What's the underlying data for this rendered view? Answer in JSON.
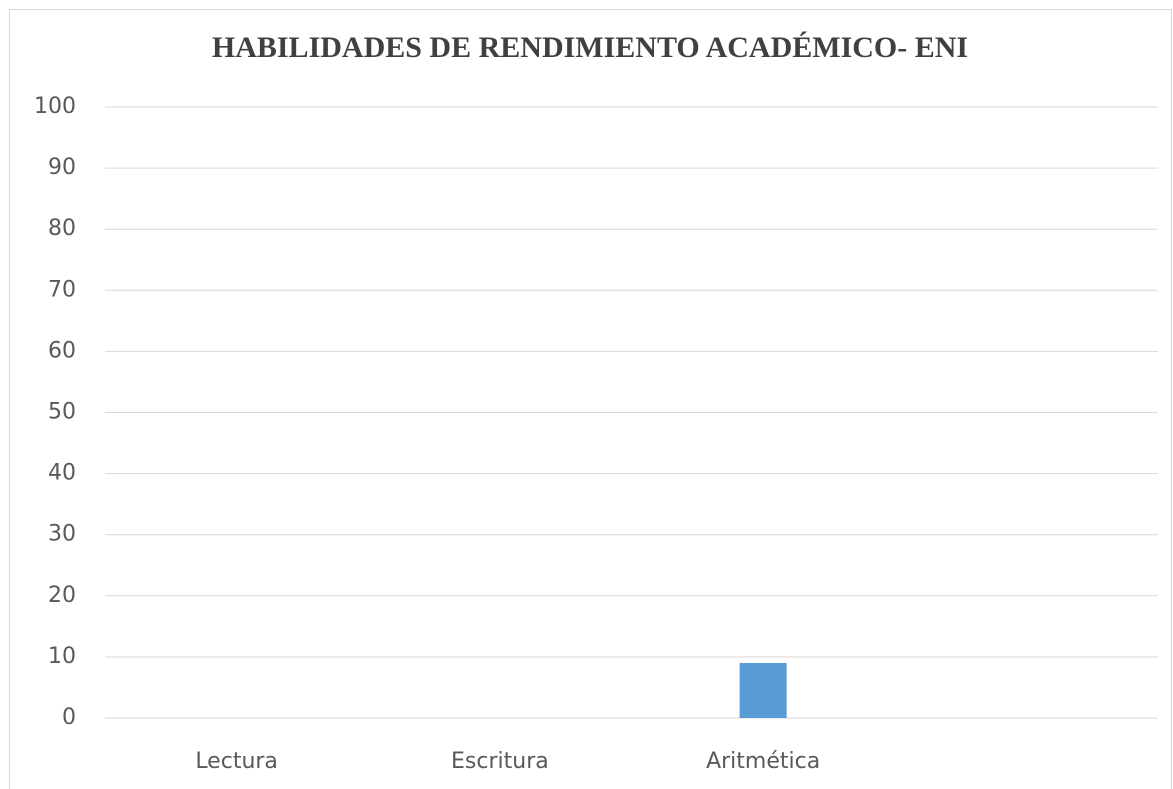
{
  "chart_data": {
    "type": "bar",
    "title": "HABILIDADES DE RENDIMIENTO ACADÉMICO- ENI",
    "categories": [
      "Lectura",
      "Escritura",
      "Aritmética",
      null
    ],
    "values": [
      0,
      0,
      9,
      null
    ],
    "color": "#5b9bd5",
    "ylim": [
      0,
      100
    ],
    "yticks": [
      0,
      10,
      20,
      30,
      40,
      50,
      60,
      70,
      80,
      90,
      100
    ],
    "grid": true
  }
}
